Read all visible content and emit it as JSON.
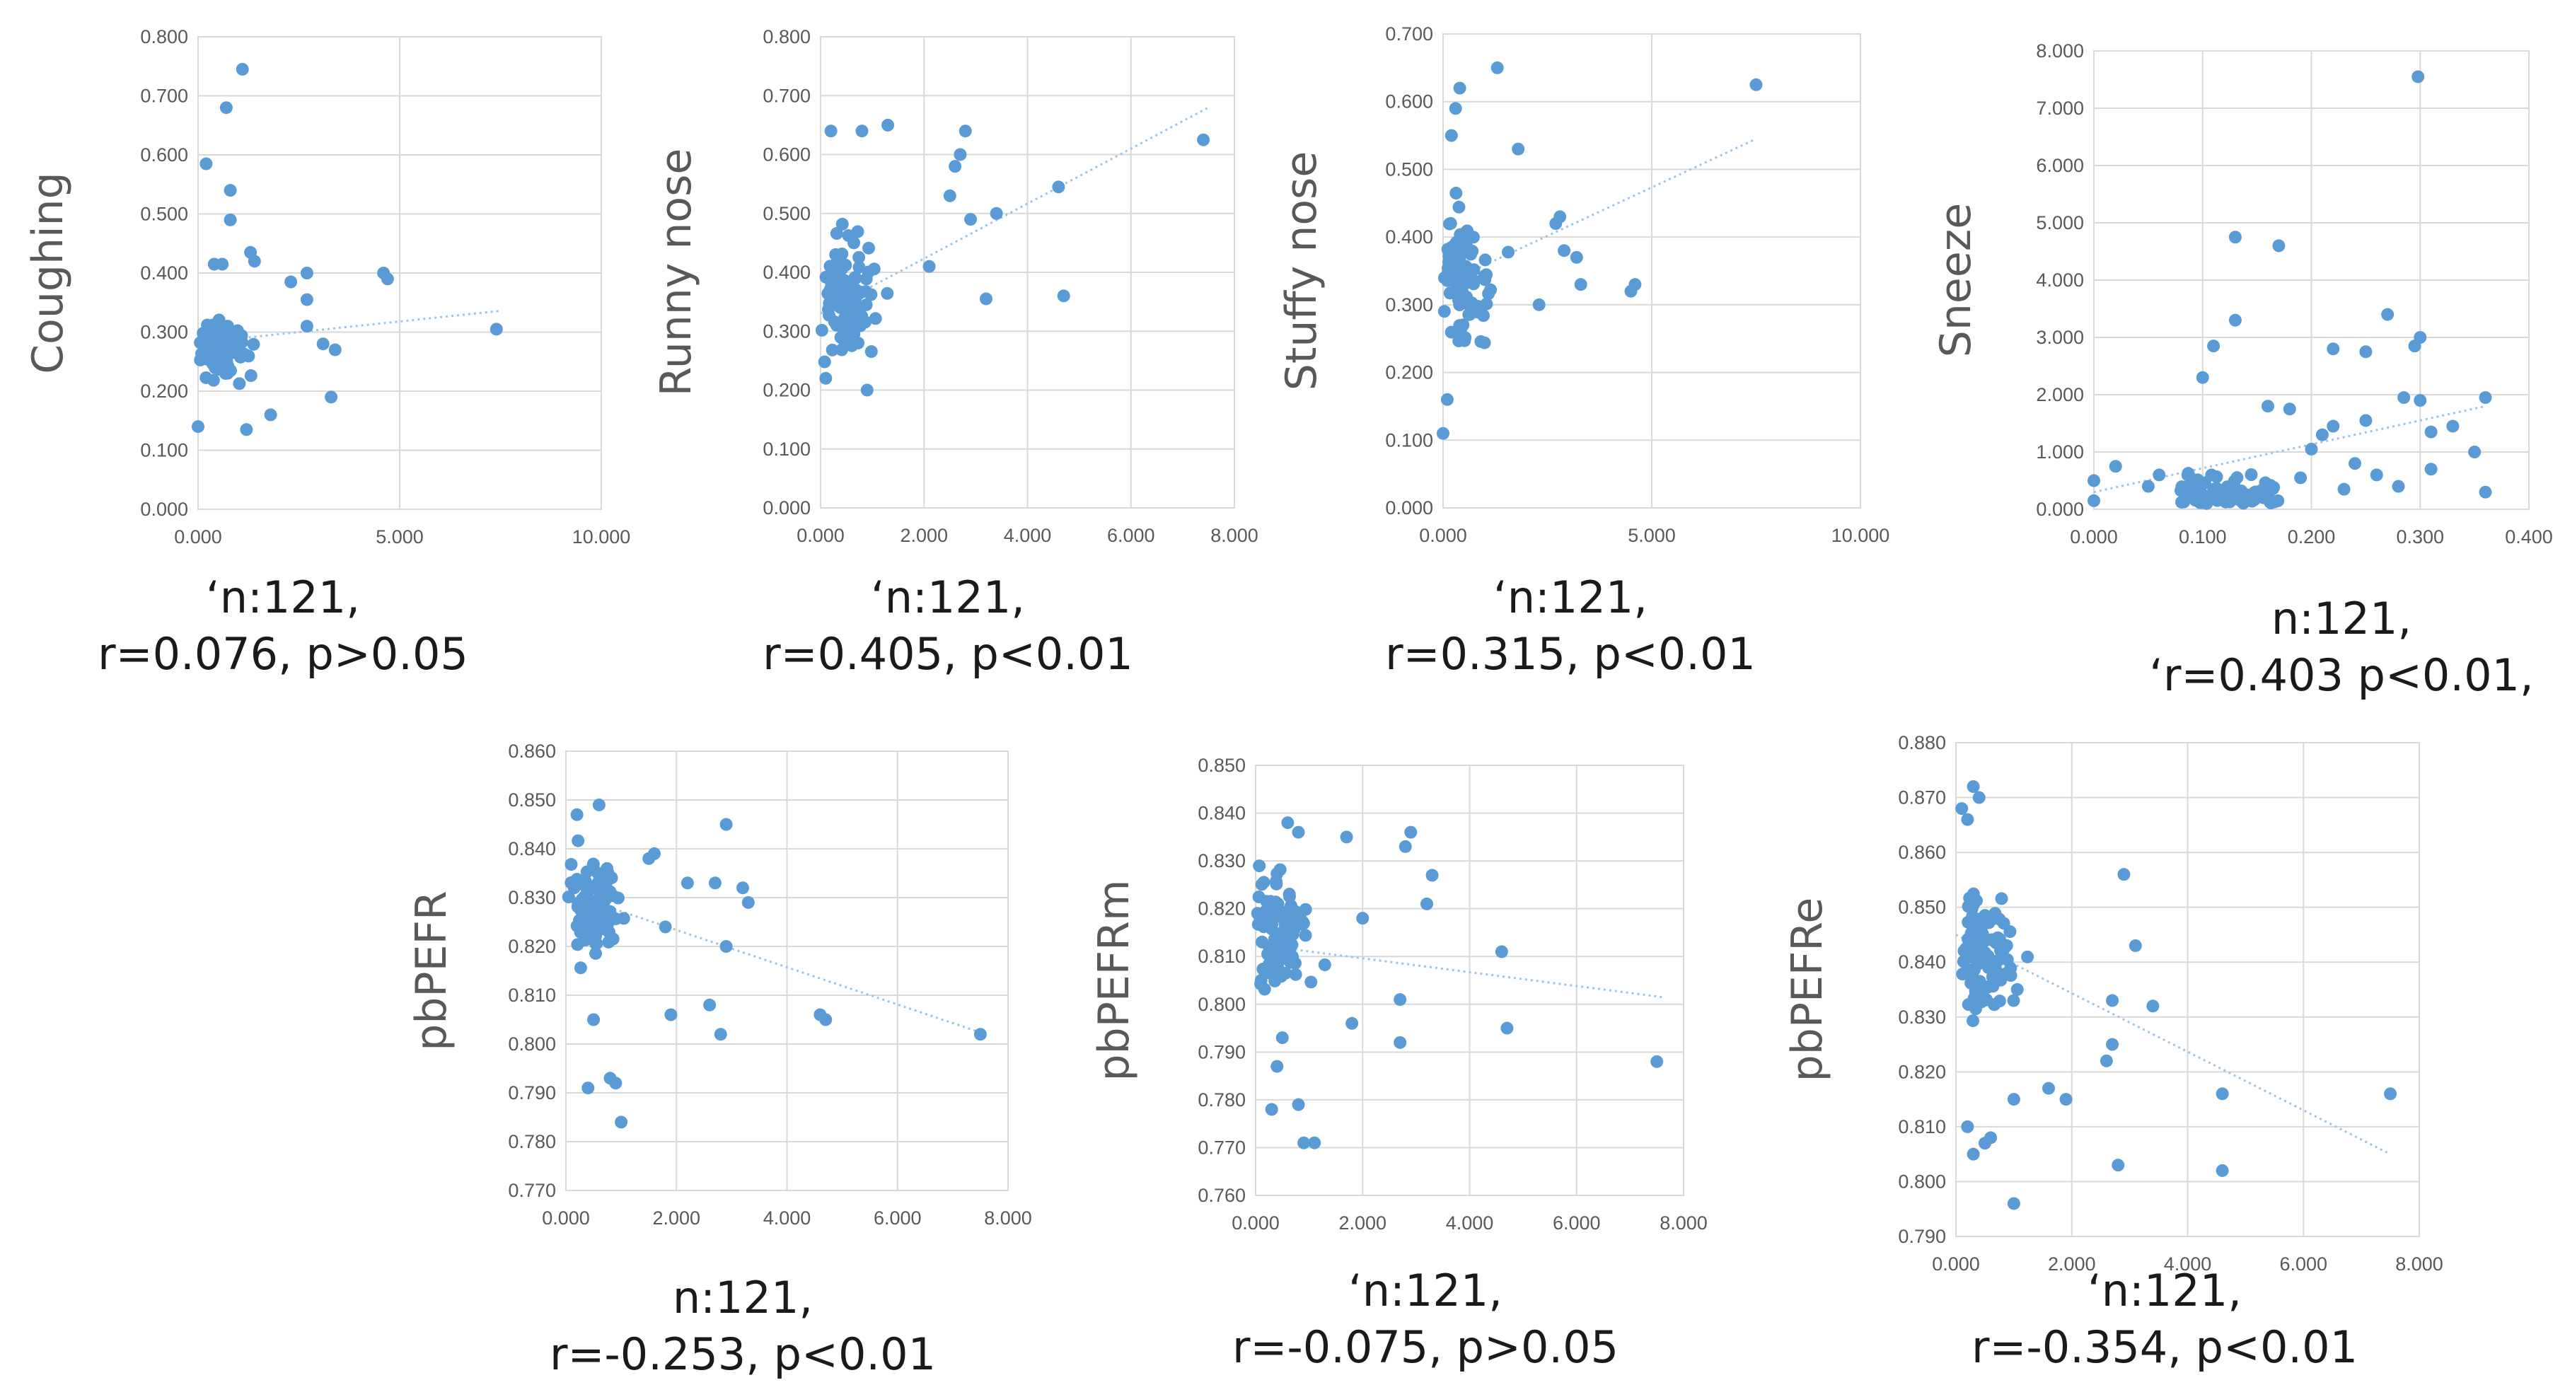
{
  "colors": {
    "point": "#5b9bd5",
    "trend": "#9dc3e6",
    "grid": "#d9d9d9",
    "tick": "#595959",
    "ylabel": "#595959"
  },
  "chart_data": [
    {
      "id": "coughing",
      "type": "scatter",
      "ylabel": "Coughing",
      "xlim": [
        0,
        10
      ],
      "xticks": [
        "0.000",
        "5.000",
        "10.000"
      ],
      "ylim": [
        0,
        0.8
      ],
      "yticks": [
        "0.000",
        "0.100",
        "0.200",
        "0.300",
        "0.400",
        "0.500",
        "0.600",
        "0.700",
        "0.800"
      ],
      "trend": [
        [
          0,
          0.282
        ],
        [
          7.5,
          0.336
        ]
      ],
      "caption": [
        "‘n:121,",
        "r=0.076, p>0.05"
      ]
    },
    {
      "id": "runny-nose",
      "type": "scatter",
      "ylabel": "Runny nose",
      "xlim": [
        0,
        8
      ],
      "xticks": [
        "0.000",
        "2.000",
        "4.000",
        "6.000",
        "8.000"
      ],
      "ylim": [
        0,
        0.8
      ],
      "yticks": [
        "0.000",
        "0.100",
        "0.200",
        "0.300",
        "0.400",
        "0.500",
        "0.600",
        "0.700",
        "0.800"
      ],
      "trend": [
        [
          0,
          0.33
        ],
        [
          7.5,
          0.68
        ]
      ],
      "caption": [
        "‘n:121,",
        "r=0.405, p<0.01"
      ]
    },
    {
      "id": "stuffy-nose",
      "type": "scatter",
      "ylabel": "Stuffy nose",
      "xlim": [
        0,
        10
      ],
      "xticks": [
        "0.000",
        "5.000",
        "10.000"
      ],
      "ylim": [
        0,
        0.7
      ],
      "yticks": [
        "0.000",
        "0.100",
        "0.200",
        "0.300",
        "0.400",
        "0.500",
        "0.600",
        "0.700"
      ],
      "trend": [
        [
          0,
          0.33
        ],
        [
          7.5,
          0.545
        ]
      ],
      "caption": [
        "‘n:121,",
        "r=0.315, p<0.01"
      ]
    },
    {
      "id": "sneeze",
      "type": "scatter",
      "ylabel": "Sneeze",
      "xlim": [
        0,
        0.4
      ],
      "xticks": [
        "0.000",
        "0.100",
        "0.200",
        "0.300",
        "0.400"
      ],
      "ylim": [
        0,
        8
      ],
      "yticks": [
        "0.000",
        "1.000",
        "2.000",
        "3.000",
        "4.000",
        "5.000",
        "6.000",
        "7.000",
        "8.000"
      ],
      "trend": [
        [
          0,
          0.3
        ],
        [
          0.36,
          1.8
        ]
      ],
      "caption": [
        "n:121,",
        "‘r=0.403 p<0.01,"
      ]
    },
    {
      "id": "pbpefr",
      "type": "scatter",
      "ylabel": "pbPEFR",
      "xlim": [
        0,
        8
      ],
      "xticks": [
        "0.000",
        "2.000",
        "4.000",
        "6.000",
        "8.000"
      ],
      "ylim": [
        0.77,
        0.86
      ],
      "yticks": [
        "0.770",
        "0.780",
        "0.790",
        "0.800",
        "0.810",
        "0.820",
        "0.830",
        "0.840",
        "0.850",
        "0.860"
      ],
      "trend": [
        [
          0,
          0.831
        ],
        [
          7.6,
          0.802
        ]
      ],
      "caption": [
        "n:121,",
        "r=-0.253, p<0.01"
      ]
    },
    {
      "id": "pbpefrm",
      "type": "scatter",
      "ylabel": "pbPEFRm",
      "xlim": [
        0,
        8
      ],
      "xticks": [
        "0.000",
        "2.000",
        "4.000",
        "6.000",
        "8.000"
      ],
      "ylim": [
        0.76,
        0.85
      ],
      "yticks": [
        "0.760",
        "0.770",
        "0.780",
        "0.790",
        "0.800",
        "0.810",
        "0.820",
        "0.830",
        "0.840",
        "0.850"
      ],
      "trend": [
        [
          0,
          0.8125
        ],
        [
          7.6,
          0.8015
        ]
      ],
      "caption": [
        "‘n:121,",
        "r=-0.075, p>0.05"
      ]
    },
    {
      "id": "pbpefre",
      "type": "scatter",
      "ylabel": "pbPEFRe",
      "xlim": [
        0,
        8
      ],
      "xticks": [
        "0.000",
        "2.000",
        "4.000",
        "6.000",
        "8.000"
      ],
      "ylim": [
        0.79,
        0.88
      ],
      "yticks": [
        "0.790",
        "0.800",
        "0.810",
        "0.820",
        "0.830",
        "0.840",
        "0.850",
        "0.860",
        "0.870",
        "0.880"
      ],
      "trend": [
        [
          0,
          0.845
        ],
        [
          7.5,
          0.805
        ]
      ],
      "caption": [
        "‘n:121,",
        "r=-0.354, p<0.01"
      ]
    }
  ]
}
